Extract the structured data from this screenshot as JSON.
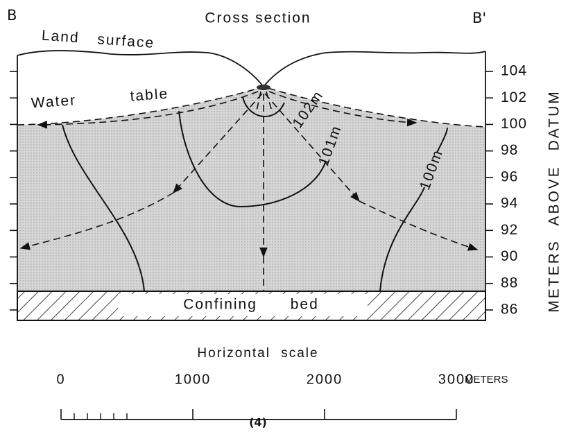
{
  "header": {
    "left_label": "B",
    "title": "Cross section",
    "right_label": "B'"
  },
  "labels": {
    "land_surface": "Land surface",
    "water_table": "Water table",
    "confining_bed": "Confining bed"
  },
  "contours": [
    {
      "label": "102m"
    },
    {
      "label": "101m"
    },
    {
      "label": "100m"
    }
  ],
  "vertical_axis": {
    "label": "METERS ABOVE DATUM",
    "ticks": [
      104,
      102,
      100,
      98,
      96,
      94,
      92,
      90,
      88,
      86
    ]
  },
  "horizontal_scale": {
    "title": "Horizontal scale",
    "ticks": [
      0,
      1000,
      2000,
      3000
    ],
    "unit": "METERS"
  },
  "figure_label": "(4)"
}
